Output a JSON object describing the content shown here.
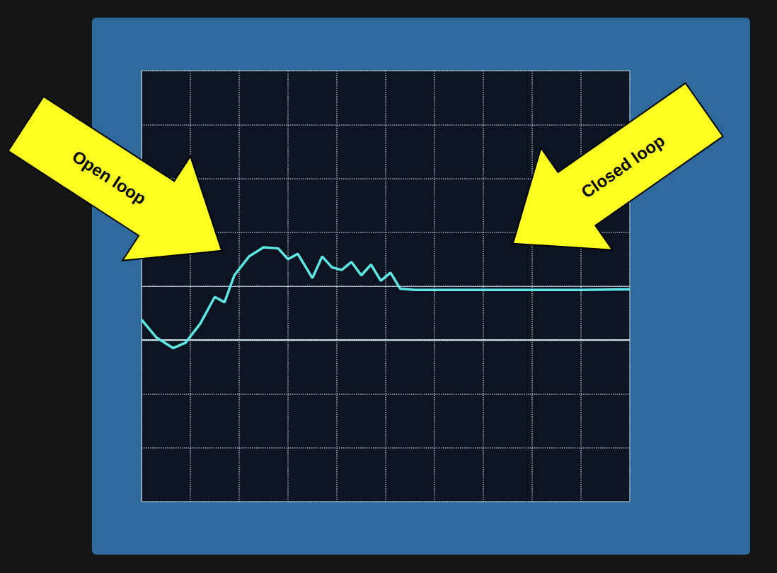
{
  "chart_data": {
    "type": "line",
    "x": [
      0,
      0.3,
      0.65,
      0.9,
      1.2,
      1.5,
      1.7,
      1.9,
      2.2,
      2.5,
      2.8,
      3.0,
      3.2,
      3.5,
      3.7,
      3.9,
      4.1,
      4.3,
      4.5,
      4.7,
      4.9,
      5.1,
      5.3,
      5.6,
      6,
      7,
      8,
      9,
      10
    ],
    "series": [
      {
        "color": "#5fe6e6",
        "values": [
          -0.62,
          -0.95,
          -1.15,
          -1.05,
          -0.7,
          -0.2,
          -0.3,
          0.2,
          0.55,
          0.72,
          0.7,
          0.5,
          0.6,
          0.15,
          0.55,
          0.35,
          0.3,
          0.45,
          0.2,
          0.4,
          0.1,
          0.25,
          -0.05,
          -0.07,
          -0.07,
          -0.07,
          -0.07,
          -0.07,
          -0.06
        ]
      },
      {
        "color": "#dcefef",
        "values": [
          -1,
          -1,
          -1,
          -1,
          -1,
          -1,
          -1,
          -1,
          -1,
          -1,
          -1,
          -1,
          -1,
          -1,
          -1,
          -1,
          -1,
          -1,
          -1,
          -1,
          -1,
          -1,
          -1,
          -1,
          -1,
          -1,
          -1,
          -1,
          -1
        ]
      }
    ],
    "xlim": [
      0,
      10
    ],
    "xticks": [
      0,
      1,
      2,
      3,
      4,
      5,
      6,
      7,
      8,
      9,
      10
    ],
    "ylim": [
      -4,
      4
    ],
    "yticks": [
      -4,
      -3,
      -2,
      -1,
      0,
      1,
      2,
      3,
      4
    ],
    "grid": true,
    "tick_labels": false,
    "annotations": [
      "Open loop",
      "Closed loop"
    ]
  }
}
